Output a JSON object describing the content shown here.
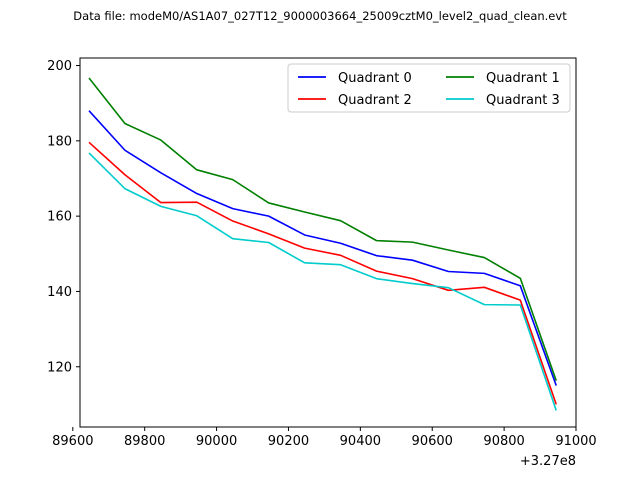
{
  "chart_data": {
    "type": "line",
    "title": "Data file: modeM0/AS1A07_027T12_9000003664_25009cztM0_level2_quad_clean.evt",
    "xlabel": "",
    "ylabel": "",
    "x_offset_label": "+3.27e8",
    "xlim": [
      89620,
      91000
    ],
    "ylim": [
      104,
      202
    ],
    "x_ticks": [
      89600,
      89800,
      90000,
      90200,
      90400,
      90600,
      90800,
      91000
    ],
    "x_tick_labels": [
      "89600",
      "89800",
      "90000",
      "90200",
      "90400",
      "90600",
      "90800",
      "91000"
    ],
    "y_ticks": [
      120,
      140,
      160,
      180,
      200
    ],
    "y_tick_labels": [
      "120",
      "140",
      "160",
      "180",
      "200"
    ],
    "grid": false,
    "legend": {
      "placement": "top-right",
      "columns": 2
    },
    "x": [
      89645,
      89745,
      89845,
      89945,
      90045,
      90145,
      90245,
      90345,
      90445,
      90545,
      90645,
      90745,
      90845,
      90945
    ],
    "series": [
      {
        "name": "Quadrant 0",
        "color": "#0000ff",
        "values": [
          188,
          177.5,
          171.5,
          166,
          162,
          160,
          155,
          152.8,
          149.5,
          148.3,
          145.3,
          144.8,
          141.5,
          115
        ]
      },
      {
        "name": "Quadrant 1",
        "color": "#008000",
        "values": [
          196.7,
          184.6,
          180.2,
          172.3,
          169.7,
          163.5,
          161.1,
          158.8,
          153.5,
          153.1,
          151,
          149,
          143.5,
          116.3
        ]
      },
      {
        "name": "Quadrant 2",
        "color": "#ff0000",
        "values": [
          179.6,
          171,
          163.6,
          163.7,
          158.7,
          155.3,
          151.5,
          149.6,
          145.4,
          143.4,
          140.3,
          141.1,
          137.7,
          110
        ]
      },
      {
        "name": "Quadrant 3",
        "color": "#00cccc",
        "values": [
          176.8,
          167.3,
          162.6,
          160.1,
          154,
          153,
          147.6,
          147.1,
          143.4,
          142.1,
          141,
          136.5,
          136.4,
          108.4
        ]
      }
    ]
  }
}
